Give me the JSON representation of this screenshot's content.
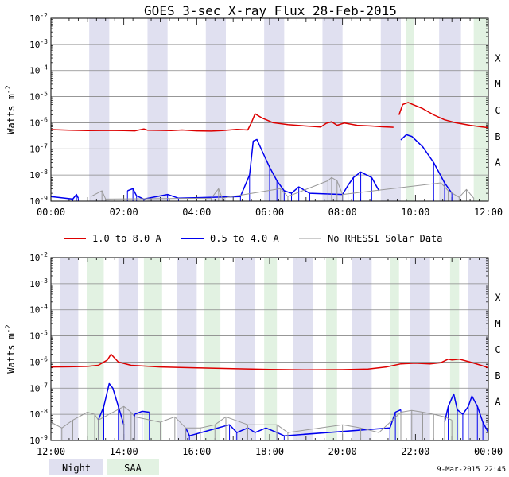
{
  "chart_data": [
    {
      "type": "line",
      "title": "GOES 3-sec X-ray Flux   28-Feb-2015",
      "ylabel": "Watts m^-2",
      "yscale": "log",
      "ylim": [
        1e-09,
        0.01
      ],
      "xlim_hours": [
        0,
        12
      ],
      "xticks": [
        "00:00",
        "02:00",
        "04:00",
        "06:00",
        "08:00",
        "10:00",
        "12:00"
      ],
      "yticks": [
        "10^-2",
        "10^-3",
        "10^-4",
        "10^-5",
        "10^-6",
        "10^-7",
        "10^-8",
        "10^-9"
      ],
      "class_labels": [
        "X",
        "M",
        "C",
        "B",
        "A"
      ],
      "night_intervals_hours": [
        [
          1.05,
          1.6
        ],
        [
          2.65,
          3.2
        ],
        [
          4.25,
          4.8
        ],
        [
          5.85,
          6.4
        ],
        [
          7.45,
          8.0
        ],
        [
          9.05,
          9.6
        ],
        [
          10.65,
          11.25
        ]
      ],
      "saa_intervals_hours": [
        [
          9.75,
          9.95
        ],
        [
          11.6,
          12.0
        ]
      ],
      "series": [
        {
          "name": "1.0 to 8.0 A",
          "color": "#dd0000",
          "points": [
            [
              0,
              5.5e-07
            ],
            [
              0.5,
              5.2e-07
            ],
            [
              1,
              5e-07
            ],
            [
              1.5,
              5.1e-07
            ],
            [
              2,
              5e-07
            ],
            [
              2.3,
              4.9e-07
            ],
            [
              2.55,
              5.8e-07
            ],
            [
              2.65,
              5.2e-07
            ],
            [
              3,
              5.1e-07
            ],
            [
              3.3,
              5e-07
            ],
            [
              3.6,
              5.3e-07
            ],
            [
              4,
              4.9e-07
            ],
            [
              4.4,
              4.8e-07
            ],
            [
              4.7,
              5e-07
            ],
            [
              5.1,
              5.6e-07
            ],
            [
              5.4,
              5.3e-07
            ],
            [
              5.5,
              1e-06
            ],
            [
              5.6,
              2.2e-06
            ],
            [
              5.8,
              1.5e-06
            ],
            [
              6.1,
              1e-06
            ],
            [
              6.5,
              8.5e-07
            ],
            [
              7,
              7.5e-07
            ],
            [
              7.4,
              6.9e-07
            ],
            [
              7.55,
              9.5e-07
            ],
            [
              7.7,
              1.1e-06
            ],
            [
              7.85,
              8e-07
            ],
            [
              8.05,
              9.8e-07
            ],
            [
              8.4,
              8e-07
            ],
            [
              8.8,
              7.5e-07
            ],
            [
              9.1,
              7e-07
            ],
            [
              9.3,
              6.8e-07
            ],
            [
              9.4,
              6.7e-07
            ],
            [
              9.35,
              null
            ],
            [
              9.55,
              2e-06
            ],
            [
              9.65,
              5e-06
            ],
            [
              9.8,
              6e-06
            ],
            [
              9.9,
              5.2e-06
            ],
            [
              10.2,
              3.5e-06
            ],
            [
              10.5,
              2e-06
            ],
            [
              10.8,
              1.3e-06
            ],
            [
              11.1,
              1e-06
            ],
            [
              11.5,
              8e-07
            ],
            [
              11.8,
              7e-07
            ],
            [
              12,
              6.5e-07
            ]
          ]
        },
        {
          "name": "0.5 to 4.0 A",
          "color": "#0000ee",
          "points": [
            [
              0,
              1.5e-09
            ],
            [
              0.6,
              1.2e-09
            ],
            [
              0.7,
              1.8e-09
            ],
            [
              0.75,
              1.3e-09
            ],
            [
              1.0,
              null
            ],
            [
              2.1,
              2.5e-09
            ],
            [
              2.25,
              3e-09
            ],
            [
              2.35,
              1.6e-09
            ],
            [
              2.55,
              1.2e-09
            ],
            [
              3.2,
              1.8e-09
            ],
            [
              3.5,
              1.3e-09
            ],
            [
              5.2,
              1.5e-09
            ],
            [
              5.45,
              1e-08
            ],
            [
              5.55,
              2e-07
            ],
            [
              5.65,
              2.3e-07
            ],
            [
              5.8,
              8e-08
            ],
            [
              6.0,
              2e-08
            ],
            [
              6.2,
              6e-09
            ],
            [
              6.4,
              2.5e-09
            ],
            [
              6.6,
              2e-09
            ],
            [
              6.8,
              3.5e-09
            ],
            [
              7.1,
              2e-09
            ],
            [
              8.0,
              1.8e-09
            ],
            [
              8.15,
              4e-09
            ],
            [
              8.3,
              8e-09
            ],
            [
              8.5,
              1.3e-08
            ],
            [
              8.8,
              8e-09
            ],
            [
              9.0,
              2.5e-09
            ],
            [
              9.4,
              null
            ],
            [
              9.6,
              2.2e-07
            ],
            [
              9.75,
              3.5e-07
            ],
            [
              9.9,
              3e-07
            ],
            [
              10.2,
              1.2e-07
            ],
            [
              10.5,
              3e-08
            ],
            [
              10.8,
              5e-09
            ],
            [
              11.0,
              2e-09
            ]
          ]
        },
        {
          "name": "No RHESSI Solar Data",
          "color": "#999999",
          "points": [
            [
              1.1,
              1.5e-09
            ],
            [
              1.4,
              2.5e-09
            ],
            [
              1.5,
              1.2e-09
            ],
            [
              4.4,
              1.3e-09
            ],
            [
              4.6,
              3e-09
            ],
            [
              4.7,
              1.3e-09
            ],
            [
              6.3,
              3e-09
            ],
            [
              6.5,
              1.5e-09
            ],
            [
              7.6,
              6e-09
            ],
            [
              7.7,
              8e-09
            ],
            [
              7.85,
              6e-09
            ],
            [
              8.0,
              1.8e-09
            ],
            [
              10.7,
              5e-09
            ],
            [
              10.9,
              2.5e-09
            ],
            [
              11.2,
              1.4e-09
            ],
            [
              11.4,
              2.8e-09
            ],
            [
              11.6,
              1.3e-09
            ]
          ]
        }
      ]
    },
    {
      "type": "line",
      "ylabel": "Watts m^-2",
      "yscale": "log",
      "ylim": [
        1e-09,
        0.01
      ],
      "xlim_hours": [
        12,
        24
      ],
      "xticks": [
        "12:00",
        "14:00",
        "16:00",
        "18:00",
        "20:00",
        "22:00",
        "00:00"
      ],
      "yticks": [
        "10^-2",
        "10^-3",
        "10^-4",
        "10^-5",
        "10^-6",
        "10^-7",
        "10^-8",
        "10^-9"
      ],
      "class_labels": [
        "X",
        "M",
        "C",
        "B",
        "A"
      ],
      "night_intervals_hours": [
        [
          12.25,
          12.75
        ],
        [
          13.85,
          14.4
        ],
        [
          15.45,
          16.0
        ],
        [
          17.05,
          17.6
        ],
        [
          18.65,
          19.2
        ],
        [
          20.25,
          20.8
        ],
        [
          21.85,
          22.4
        ],
        [
          23.45,
          24.0
        ]
      ],
      "saa_intervals_hours": [
        [
          13.0,
          13.45
        ],
        [
          14.55,
          15.05
        ],
        [
          16.2,
          16.65
        ],
        [
          17.85,
          18.2
        ],
        [
          19.55,
          19.85
        ],
        [
          21.3,
          21.55
        ],
        [
          22.95,
          23.2
        ]
      ],
      "series": [
        {
          "name": "1.0 to 8.0 A",
          "color": "#dd0000",
          "points": [
            [
              12,
              6.5e-07
            ],
            [
              12.5,
              6.6e-07
            ],
            [
              13,
              6.8e-07
            ],
            [
              13.3,
              7.5e-07
            ],
            [
              13.55,
              1.2e-06
            ],
            [
              13.65,
              2e-06
            ],
            [
              13.85,
              1e-06
            ],
            [
              14.2,
              7.5e-07
            ],
            [
              15,
              6.5e-07
            ],
            [
              16,
              6e-07
            ],
            [
              17,
              5.6e-07
            ],
            [
              18,
              5.2e-07
            ],
            [
              19,
              5e-07
            ],
            [
              20,
              5.1e-07
            ],
            [
              20.7,
              5.4e-07
            ],
            [
              21.2,
              6.5e-07
            ],
            [
              21.6,
              8.5e-07
            ],
            [
              22.0,
              9e-07
            ],
            [
              22.4,
              8.5e-07
            ],
            [
              22.7,
              9.5e-07
            ],
            [
              22.9,
              1.3e-06
            ],
            [
              23.0,
              1.2e-06
            ],
            [
              23.2,
              1.3e-06
            ],
            [
              23.5,
              1e-06
            ],
            [
              23.8,
              7.5e-07
            ],
            [
              24,
              6e-07
            ]
          ]
        },
        {
          "name": "0.5 to 4.0 A",
          "color": "#0000ee",
          "points": [
            [
              13.3,
              6e-09
            ],
            [
              13.45,
              2e-08
            ],
            [
              13.6,
              1.5e-07
            ],
            [
              13.7,
              1e-07
            ],
            [
              13.85,
              2e-08
            ],
            [
              14.0,
              4e-09
            ],
            [
              14.1,
              null
            ],
            [
              14.3,
              1e-08
            ],
            [
              14.5,
              1.3e-08
            ],
            [
              14.7,
              1.2e-08
            ],
            [
              14.9,
              null
            ],
            [
              15.7,
              3e-09
            ],
            [
              15.8,
              1.5e-09
            ],
            [
              16.9,
              4e-09
            ],
            [
              17.1,
              2e-09
            ],
            [
              17.4,
              3e-09
            ],
            [
              17.6,
              2e-09
            ],
            [
              17.9,
              3e-09
            ],
            [
              18.2,
              2e-09
            ],
            [
              18.4,
              1.5e-09
            ],
            [
              21.3,
              3e-09
            ],
            [
              21.45,
              1.2e-08
            ],
            [
              21.6,
              1.5e-08
            ],
            [
              21.8,
              null
            ],
            [
              22.8,
              5e-09
            ],
            [
              22.9,
              2e-08
            ],
            [
              23.05,
              6e-08
            ],
            [
              23.15,
              1.5e-08
            ],
            [
              23.3,
              1e-08
            ],
            [
              23.45,
              2e-08
            ],
            [
              23.55,
              5e-08
            ],
            [
              23.7,
              2e-08
            ],
            [
              23.85,
              5e-09
            ],
            [
              24.0,
              2e-09
            ]
          ]
        },
        {
          "name": "No RHESSI Solar Data",
          "color": "#999999",
          "points": [
            [
              12.0,
              5e-09
            ],
            [
              12.3,
              3e-09
            ],
            [
              12.6,
              6e-09
            ],
            [
              13.0,
              1.2e-08
            ],
            [
              13.2,
              1e-08
            ],
            [
              13.3,
              6e-09
            ],
            [
              14.0,
              2e-08
            ],
            [
              14.2,
              1.2e-08
            ],
            [
              14.3,
              8e-09
            ],
            [
              15.0,
              5e-09
            ],
            [
              15.4,
              8e-09
            ],
            [
              15.7,
              3e-09
            ],
            [
              16.1,
              3e-09
            ],
            [
              16.5,
              4e-09
            ],
            [
              16.8,
              8e-09
            ],
            [
              17.4,
              4e-09
            ],
            [
              18.2,
              4e-09
            ],
            [
              18.5,
              2e-09
            ],
            [
              20.0,
              4e-09
            ],
            [
              20.5,
              3e-09
            ],
            [
              21.0,
              2e-09
            ],
            [
              21.6,
              1.2e-08
            ],
            [
              21.9,
              1.4e-08
            ],
            [
              22.2,
              1.2e-08
            ],
            [
              22.5,
              1e-08
            ],
            [
              22.8,
              8e-09
            ],
            [
              23.0,
              6e-09
            ]
          ]
        }
      ]
    }
  ],
  "legend": {
    "items": [
      "1.0 to 8.0 A",
      "0.5 to 4.0 A",
      "No RHESSI Solar Data"
    ]
  },
  "shading_legend": {
    "night_label": "Night",
    "saa_label": "SAA",
    "night_color": "#e0e0f0",
    "saa_color": "#e2f2e2"
  },
  "footer": {
    "timestamp": "9-Mar-2015 22:45"
  }
}
